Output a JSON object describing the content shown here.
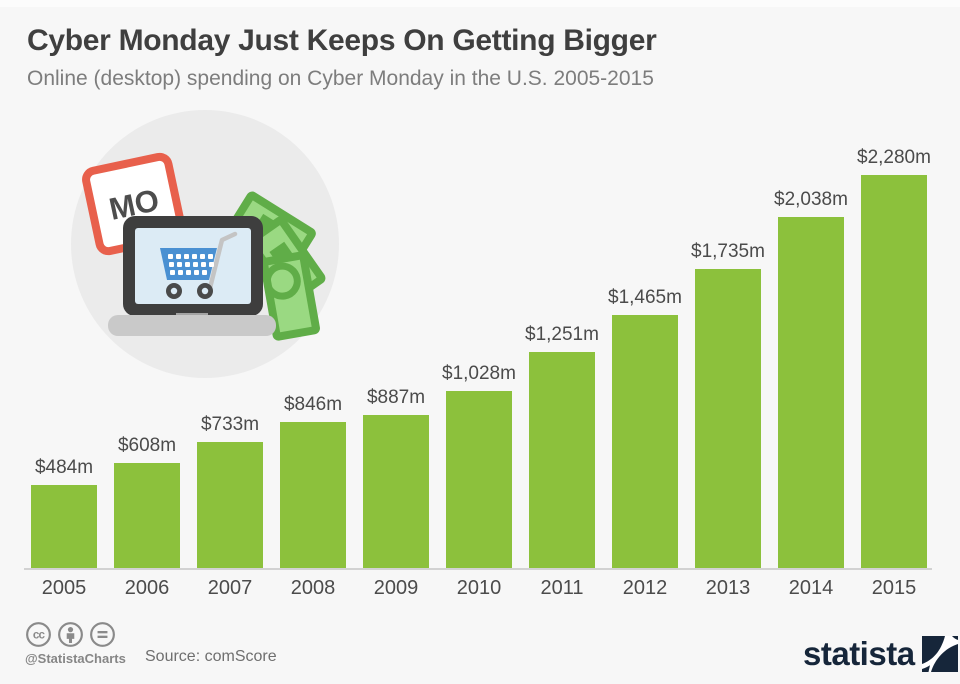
{
  "header": {
    "title": "Cyber Monday Just Keeps On Getting Bigger",
    "subtitle": "Online (desktop) spending on Cyber Monday in the U.S. 2005-2015"
  },
  "illustration": {
    "calendar_text": "MO"
  },
  "chart_data": {
    "type": "bar",
    "title": "Cyber Monday Just Keeps On Getting Bigger",
    "subtitle": "Online (desktop) spending on Cyber Monday in the U.S. 2005-2015",
    "categories": [
      "2005",
      "2006",
      "2007",
      "2008",
      "2009",
      "2010",
      "2011",
      "2012",
      "2013",
      "2014",
      "2015"
    ],
    "values": [
      484,
      608,
      733,
      846,
      887,
      1028,
      1251,
      1465,
      1735,
      2038,
      2280
    ],
    "value_labels": [
      "$484m",
      "$608m",
      "$733m",
      "$846m",
      "$887m",
      "$1,028m",
      "$1,251m",
      "$1,465m",
      "$1,735m",
      "$2,038m",
      "$2,280m"
    ],
    "xlabel": "",
    "ylabel": "",
    "ylim": [
      0,
      2280
    ],
    "grid": false,
    "legend": false,
    "bar_color": "#8cc13c",
    "unit": "USD millions"
  },
  "footer": {
    "cc_text": "cc",
    "handle": "@StatistaCharts",
    "source": "Source: comScore",
    "logo_text": "statista"
  },
  "colors": {
    "bar_green": "#8cc13c",
    "background": "#f7f7f7",
    "title_text": "#3f3f3f",
    "subtitle_text": "#7d7d7d",
    "label_text": "#4b4b4b",
    "axis_line": "#d2d2d2",
    "footer_gray": "#868686",
    "logo_navy": "#16263a"
  }
}
